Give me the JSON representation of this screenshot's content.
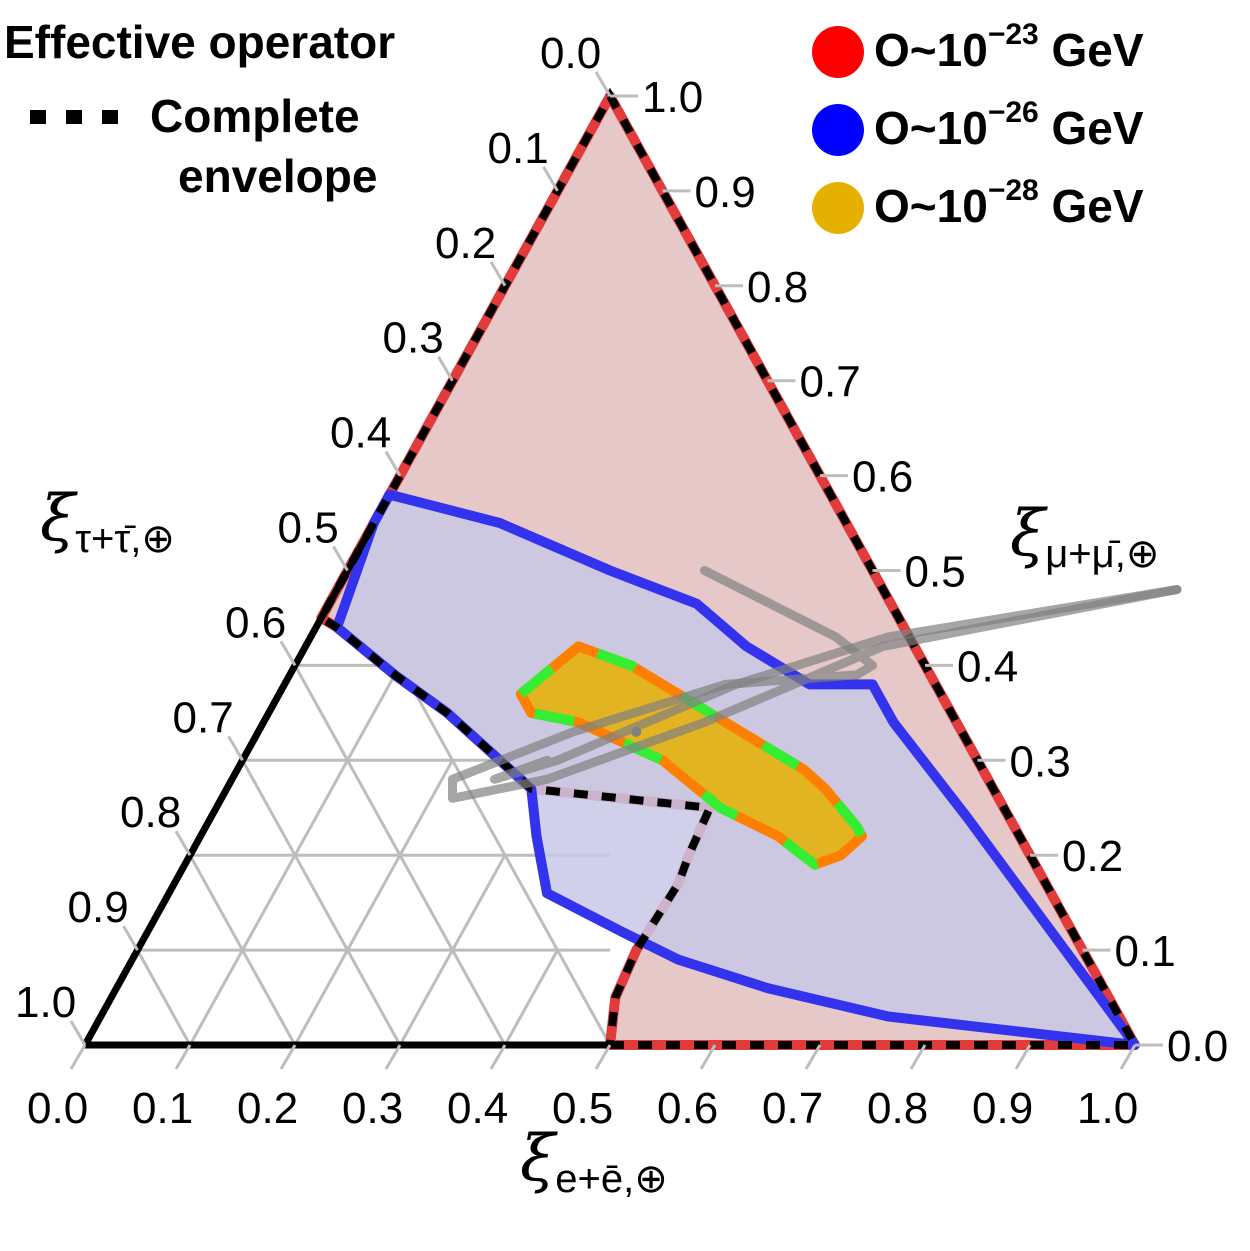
{
  "chart_data": {
    "type": "ternary-contour",
    "axes": {
      "bottom": {
        "label_main": "ξ",
        "label_sub": "e+ē,⊕",
        "ticks": [
          "0.0",
          "0.1",
          "0.2",
          "0.3",
          "0.4",
          "0.5",
          "0.6",
          "0.7",
          "0.8",
          "0.9",
          "1.0"
        ]
      },
      "right": {
        "label_main": "ξ",
        "label_sub": "μ+μ̄,⊕",
        "ticks": [
          "0.0",
          "0.1",
          "0.2",
          "0.3",
          "0.4",
          "0.5",
          "0.6",
          "0.7",
          "0.8",
          "0.9",
          "1.0"
        ]
      },
      "left": {
        "label_main": "ξ",
        "label_sub": "τ+τ̄,⊕",
        "ticks": [
          "0.0",
          "0.1",
          "0.2",
          "0.3",
          "0.4",
          "0.5",
          "0.6",
          "0.7",
          "0.8",
          "0.9",
          "1.0"
        ]
      }
    },
    "grid": true,
    "grid_region": "e < 0.5",
    "legend_left": {
      "title": "Effective operator",
      "envelope_line1": "- - - Complete",
      "envelope_line2": "envelope"
    },
    "legend_right": [
      {
        "prefix": "O~10",
        "exponent": "−23",
        "unit": " GeV",
        "color": "#ff0000"
      },
      {
        "prefix": "O~10",
        "exponent": "−26",
        "unit": " GeV",
        "color": "#0000ff"
      },
      {
        "prefix": "O~10",
        "exponent": "−28",
        "unit": " GeV",
        "color": "#e6b000"
      }
    ],
    "regions": [
      {
        "name": "O~10^-23 GeV",
        "fill": "#e6c8c8",
        "stroke": "#e23b3b",
        "points_e_mu": [
          [
            0.5,
            0.0
          ],
          [
            1.0,
            0.0
          ],
          [
            0.0,
            1.0
          ],
          [
            0.0,
            0.45
          ],
          [
            0.02,
            0.44
          ],
          [
            0.1,
            0.39
          ],
          [
            0.17,
            0.35
          ],
          [
            0.23,
            0.31
          ],
          [
            0.275,
            0.28
          ],
          [
            0.29,
            0.27
          ],
          [
            0.47,
            0.25
          ],
          [
            0.475,
            0.2
          ],
          [
            0.48,
            0.17
          ],
          [
            0.475,
            0.1
          ],
          [
            0.48,
            0.05
          ],
          [
            0.5,
            0.0
          ]
        ]
      },
      {
        "name": "O~10^-26 GeV",
        "fill": "#c8c8e6",
        "stroke": "#3333ee",
        "points_e_mu": [
          [
            0.0,
            0.55
          ],
          [
            0.02,
            0.44
          ],
          [
            0.1,
            0.39
          ],
          [
            0.17,
            0.35
          ],
          [
            0.23,
            0.31
          ],
          [
            0.275,
            0.28
          ],
          [
            0.29,
            0.27
          ],
          [
            0.32,
            0.22
          ],
          [
            0.36,
            0.16
          ],
          [
            0.45,
            0.12
          ],
          [
            0.52,
            0.09
          ],
          [
            0.62,
            0.06
          ],
          [
            0.75,
            0.03
          ],
          [
            1.0,
            0.0
          ],
          [
            0.72,
            0.24
          ],
          [
            0.6,
            0.34
          ],
          [
            0.56,
            0.38
          ],
          [
            0.52,
            0.38
          ],
          [
            0.5,
            0.38
          ],
          [
            0.42,
            0.42
          ],
          [
            0.35,
            0.465
          ],
          [
            0.25,
            0.5
          ],
          [
            0.12,
            0.55
          ],
          [
            0.0,
            0.58
          ],
          [
            0.0,
            0.55
          ]
        ]
      },
      {
        "name": "O~10^-28 GeV",
        "fill": "#e6b000",
        "stroke": "#ff7f00",
        "points_e_mu": [
          [
            0.23,
            0.37
          ],
          [
            0.26,
            0.42
          ],
          [
            0.32,
            0.4
          ],
          [
            0.4,
            0.36
          ],
          [
            0.48,
            0.32
          ],
          [
            0.54,
            0.29
          ],
          [
            0.57,
            0.27
          ],
          [
            0.62,
            0.23
          ],
          [
            0.63,
            0.22
          ],
          [
            0.62,
            0.2
          ],
          [
            0.6,
            0.19
          ],
          [
            0.55,
            0.22
          ],
          [
            0.48,
            0.25
          ],
          [
            0.4,
            0.3
          ],
          [
            0.3,
            0.34
          ],
          [
            0.25,
            0.35
          ],
          [
            0.23,
            0.37
          ]
        ]
      }
    ],
    "envelope_points_e_mu": [
      [
        0.5,
        0.0
      ],
      [
        1.0,
        0.0
      ],
      [
        0.0,
        1.0
      ],
      [
        0.0,
        0.45
      ],
      [
        0.02,
        0.44
      ],
      [
        0.1,
        0.39
      ],
      [
        0.17,
        0.35
      ],
      [
        0.23,
        0.31
      ],
      [
        0.275,
        0.28
      ],
      [
        0.29,
        0.27
      ],
      [
        0.47,
        0.25
      ],
      [
        0.475,
        0.2
      ],
      [
        0.48,
        0.17
      ],
      [
        0.475,
        0.1
      ],
      [
        0.48,
        0.05
      ],
      [
        0.5,
        0.0
      ]
    ],
    "grey_curves_e_mu": [
      [
        [
          0.0,
          0.0
        ],
        [
          0.0,
          0.0
        ]
      ]
    ],
    "grey_loops": [
      {
        "points_e_mu": [
          [
            0.34,
            0.5
          ],
          [
            0.5,
            0.43
          ],
          [
            0.55,
            0.4
          ],
          [
            0.54,
            0.39
          ],
          [
            0.42,
            0.38
          ],
          [
            0.3,
            0.33
          ],
          [
            0.21,
            0.28
          ],
          [
            0.22,
            0.26
          ],
          [
            0.3,
            0.28
          ],
          [
            0.42,
            0.34
          ],
          [
            0.55,
            0.42
          ],
          [
            0.8,
            0.48
          ]
        ]
      },
      {
        "points_e_mu": [
          [
            0.8,
            0.48
          ],
          [
            0.55,
            0.43
          ],
          [
            0.43,
            0.38
          ],
          [
            0.3,
            0.3
          ],
          [
            0.25,
            0.28
          ],
          [
            0.29,
            0.3
          ]
        ]
      }
    ],
    "best_fit_point_e_mu": [
      0.36,
      0.33
    ]
  }
}
